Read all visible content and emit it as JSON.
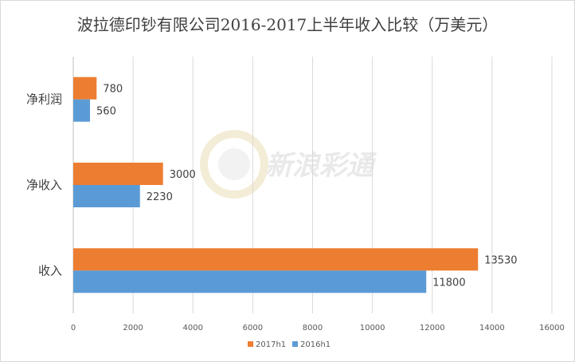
{
  "chart_data": {
    "type": "bar",
    "orientation": "horizontal",
    "title": "波拉德印钞有限公司2016-2017上半年收入比较（万美元）",
    "categories": [
      "净利润",
      "净收入",
      "收入"
    ],
    "series": [
      {
        "name": "2017h1",
        "color": "#ED7D31",
        "values": [
          780,
          3000,
          13530
        ]
      },
      {
        "name": "2016h1",
        "color": "#5B9BD5",
        "values": [
          560,
          2230,
          11800
        ]
      }
    ],
    "xlim": [
      0,
      16000
    ],
    "xticks": [
      "0",
      "2000",
      "4000",
      "6000",
      "8000",
      "10000",
      "12000",
      "14000",
      "16000"
    ],
    "grid": true,
    "legend_position": "bottom"
  },
  "watermark": {
    "text": "新浪彩通"
  }
}
